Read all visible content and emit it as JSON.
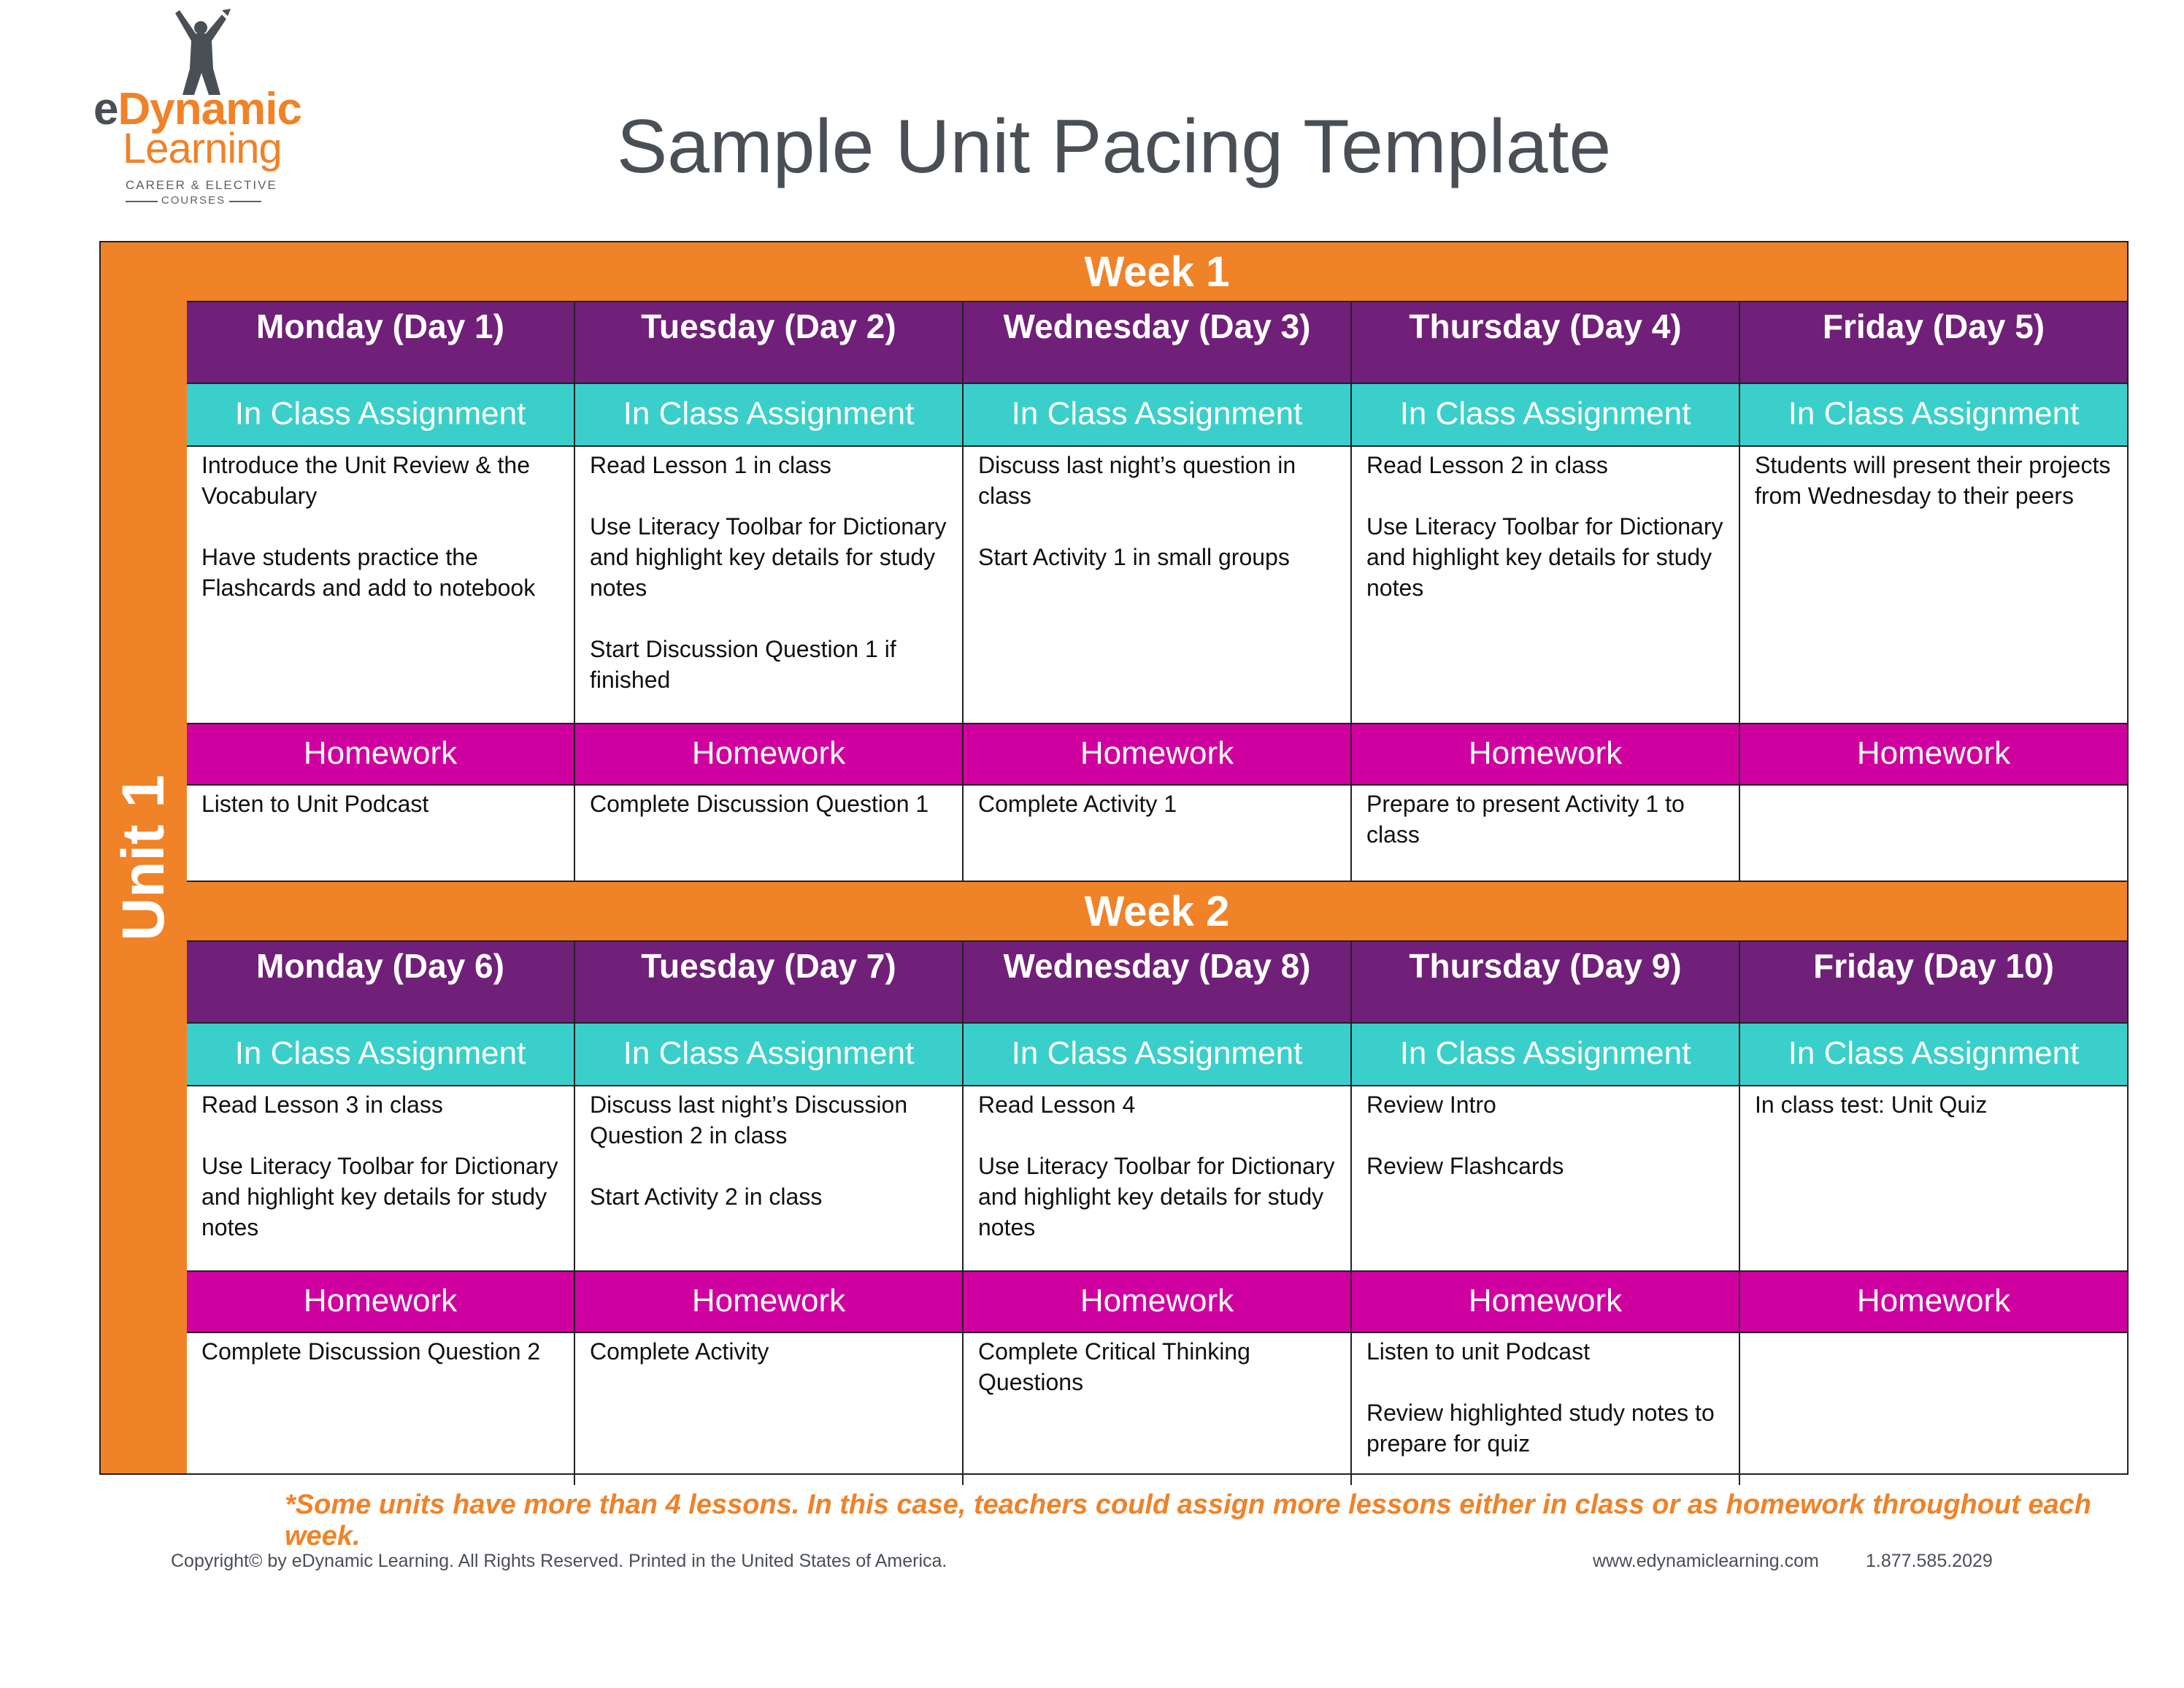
{
  "logo": {
    "brand_e": "e",
    "brand_dynamic": "Dynamic",
    "brand_learning": "Learning",
    "tagline_1": "CAREER & ELECTIVE",
    "tagline_2": "COURSES"
  },
  "title": "Sample Unit Pacing Template",
  "unit_label": "Unit 1",
  "section_labels": {
    "in_class": "In Class Assignment",
    "homework": "Homework"
  },
  "weeks": [
    {
      "label": "Week 1",
      "days": [
        {
          "name": "Monday (Day 1)",
          "in_class": [
            "Introduce the Unit Review & the Vocabulary",
            "Have students practice the Flashcards and add to notebook"
          ],
          "homework": [
            "Listen to Unit Podcast"
          ]
        },
        {
          "name": "Tuesday (Day 2)",
          "in_class": [
            "Read Lesson 1 in class",
            "Use Literacy Toolbar for Dictionary and highlight key details for study notes",
            "Start Discussion Question 1 if finished"
          ],
          "homework": [
            "Complete Discussion Question 1"
          ]
        },
        {
          "name": "Wednesday (Day 3)",
          "in_class": [
            "Discuss last night’s question in class",
            "Start Activity 1 in small groups"
          ],
          "homework": [
            "Complete Activity 1"
          ]
        },
        {
          "name": "Thursday (Day 4)",
          "in_class": [
            "Read Lesson 2 in class",
            "Use Literacy Toolbar for Dictionary and highlight key details for study notes"
          ],
          "homework": [
            "Prepare to present Activity 1 to class"
          ]
        },
        {
          "name": "Friday (Day 5)",
          "in_class": [
            "Students will present their projects from Wednesday to their peers"
          ],
          "homework": []
        }
      ]
    },
    {
      "label": "Week 2",
      "days": [
        {
          "name": "Monday (Day 6)",
          "in_class": [
            "Read Lesson 3 in class",
            "Use Literacy Toolbar for Dictionary and highlight key details for study notes"
          ],
          "homework": [
            "Complete Discussion Question 2"
          ]
        },
        {
          "name": "Tuesday (Day 7)",
          "in_class": [
            "Discuss last night’s Discussion Question 2 in class",
            "Start Activity 2 in class"
          ],
          "homework": [
            "Complete Activity"
          ]
        },
        {
          "name": "Wednesday (Day 8)",
          "in_class": [
            "Read Lesson 4",
            "Use Literacy Toolbar for Dictionary and highlight key details for study notes"
          ],
          "homework": [
            "Complete Critical Thinking Questions"
          ]
        },
        {
          "name": "Thursday (Day 9)",
          "in_class": [
            "Review Intro",
            "Review Flashcards"
          ],
          "homework": [
            "Listen to unit Podcast",
            "Review highlighted study notes to prepare for quiz"
          ]
        },
        {
          "name": "Friday (Day 10)",
          "in_class": [
            "In class test: Unit Quiz"
          ],
          "homework": []
        }
      ]
    }
  ],
  "footnote": "*Some units have more than 4 lessons. In this case, teachers could assign more lessons either in class or as homework throughout each week.",
  "footer": {
    "copyright": "Copyright© by eDynamic Learning. All Rights Reserved. Printed in the United States of America.",
    "website": "www.edynamiclearning.com",
    "phone": "1.877.585.2029"
  },
  "colors": {
    "orange": "#f08228",
    "purple": "#702078",
    "teal": "#3bcfcb",
    "magenta": "#d000a0",
    "gray": "#4a4f56"
  }
}
